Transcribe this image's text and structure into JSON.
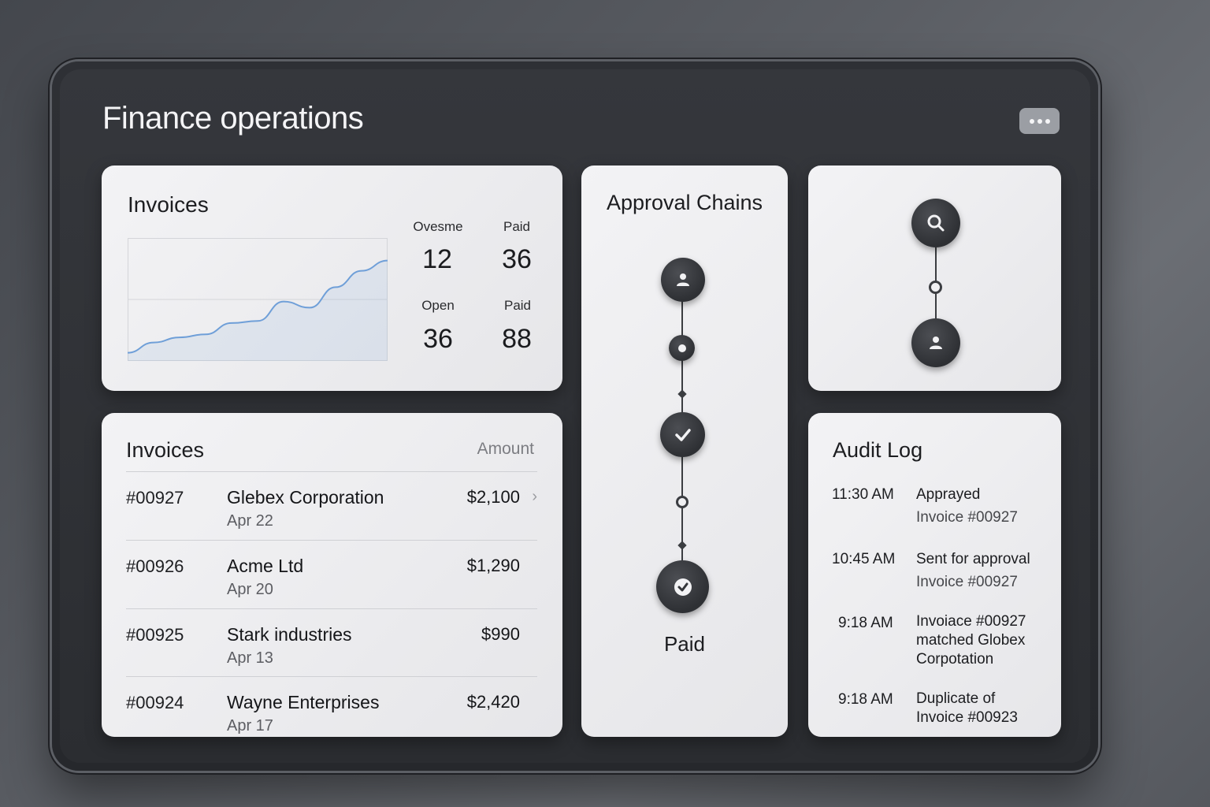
{
  "app": {
    "title": "Finance operations"
  },
  "summary": {
    "title": "Invoices",
    "stats": [
      {
        "label": "Ovesme",
        "value": "12"
      },
      {
        "label": "Paid",
        "value": "36"
      },
      {
        "label": "Open",
        "value": "36"
      },
      {
        "label": "Paid",
        "value": "88"
      }
    ],
    "chart_data": {
      "type": "area",
      "x": [
        0,
        1,
        2,
        3,
        4,
        5,
        6,
        7,
        8,
        9,
        10
      ],
      "values": [
        8,
        18,
        23,
        26,
        37,
        39,
        58,
        52,
        72,
        88,
        98
      ],
      "ylim": [
        0,
        120
      ],
      "grid": true,
      "color": "#6f9fd8"
    }
  },
  "invoices": {
    "title": "Invoices",
    "amount_header": "Amount",
    "rows": [
      {
        "id": "#00927",
        "company": "Glebex Corporation",
        "date": "Apr 22",
        "amount": "$2,100",
        "chevron": "›"
      },
      {
        "id": "#00926",
        "company": "Acme Ltd",
        "date": "Apr 20",
        "amount": "$1,290"
      },
      {
        "id": "#00925",
        "company": "Stark industries",
        "date": "Apr 13",
        "amount": "$990"
      },
      {
        "id": "#00924",
        "company": "Wayne Enterprises",
        "date": "Apr 17",
        "amount": "$2,420"
      }
    ]
  },
  "approval": {
    "title": "Approval Chains",
    "final_label": "Paid",
    "icons": [
      "user-icon",
      "check-icon",
      "check-circle-icon"
    ]
  },
  "flow": {
    "icons": [
      "search-icon",
      "user-icon"
    ]
  },
  "audit": {
    "title": "Audit Log",
    "entries": [
      {
        "time": "11:30 AM",
        "line1": "Apprayed",
        "line2": "Invoice #00927"
      },
      {
        "time": "10:45 AM",
        "line1": "Sent for approval",
        "line2": "Invoice #00927"
      },
      {
        "time": "9:18 AM",
        "line1": "Invoiace #00927",
        "line2": "matched Globex",
        "line3": "Corpotation"
      },
      {
        "time": "9:18 AM",
        "line1": "Duplicate of",
        "line2": "Invoice #00923"
      }
    ]
  },
  "colors": {
    "accent": "#6f9fd8",
    "node": "#34363a",
    "card": "#eeeef0"
  }
}
